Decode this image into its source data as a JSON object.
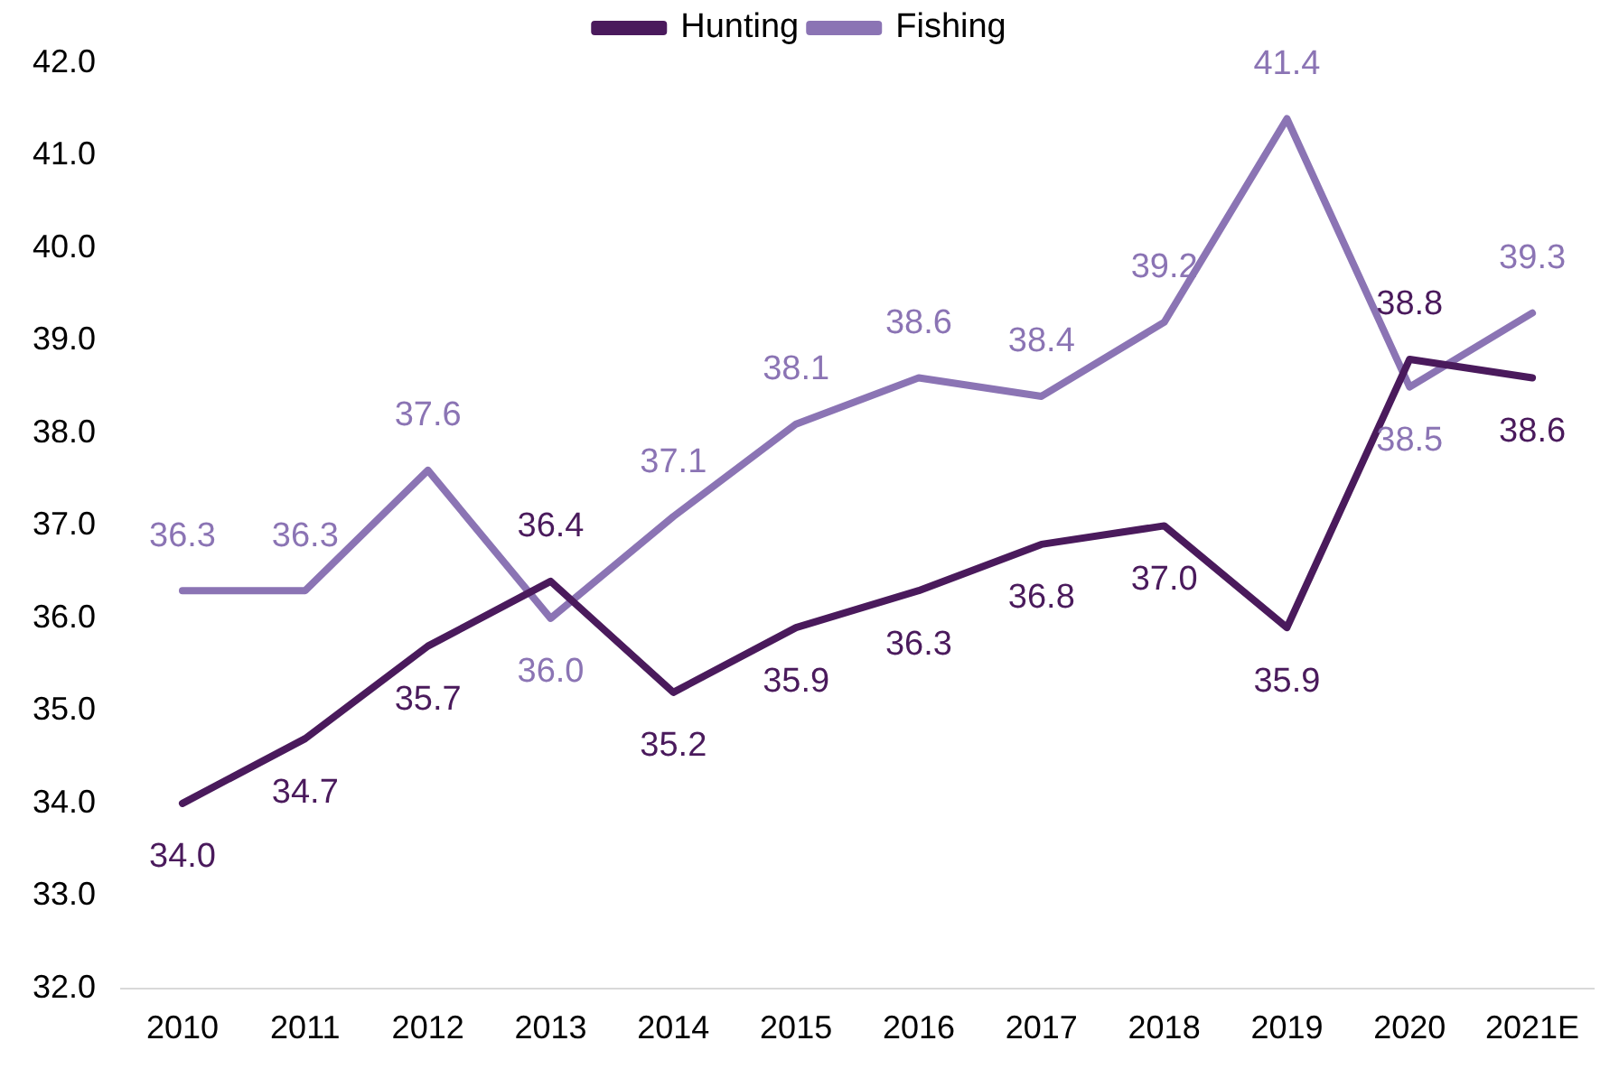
{
  "chart_data": {
    "type": "line",
    "categories": [
      "2010",
      "2011",
      "2012",
      "2013",
      "2014",
      "2015",
      "2016",
      "2017",
      "2018",
      "2019",
      "2020",
      "2021E"
    ],
    "series": [
      {
        "name": "Hunting",
        "color": "#4a1a5c",
        "values": [
          34.0,
          34.7,
          35.7,
          36.4,
          35.2,
          35.9,
          36.3,
          36.8,
          37.0,
          35.9,
          38.8,
          38.6
        ],
        "value_labels": [
          "34.0",
          "34.7",
          "35.7",
          "36.4",
          "35.2",
          "35.9",
          "36.3",
          "36.8",
          "37.0",
          "35.9",
          "38.8",
          "38.6"
        ]
      },
      {
        "name": "Fishing",
        "color": "#8b74b4",
        "values": [
          36.3,
          36.3,
          37.6,
          36.0,
          37.1,
          38.1,
          38.6,
          38.4,
          39.2,
          41.4,
          38.5,
          39.3
        ],
        "value_labels": [
          "36.3",
          "36.3",
          "37.6",
          "36.0",
          "37.1",
          "38.1",
          "38.6",
          "38.4",
          "39.2",
          "41.4",
          "38.5",
          "39.3"
        ]
      }
    ],
    "ylim": [
      32,
      42
    ],
    "yticks": [
      {
        "value": 32,
        "label": "32.0"
      },
      {
        "value": 33,
        "label": "33.0"
      },
      {
        "value": 34,
        "label": "34.0"
      },
      {
        "value": 35,
        "label": "35.0"
      },
      {
        "value": 36,
        "label": "36.0"
      },
      {
        "value": 37,
        "label": "37.0"
      },
      {
        "value": 38,
        "label": "38.0"
      },
      {
        "value": 39,
        "label": "39.0"
      },
      {
        "value": 40,
        "label": "40.0"
      },
      {
        "value": 41,
        "label": "41.0"
      },
      {
        "value": 42,
        "label": "42.0"
      }
    ],
    "grid": false,
    "legend": "top",
    "marker": "none",
    "line_style": "solid"
  }
}
